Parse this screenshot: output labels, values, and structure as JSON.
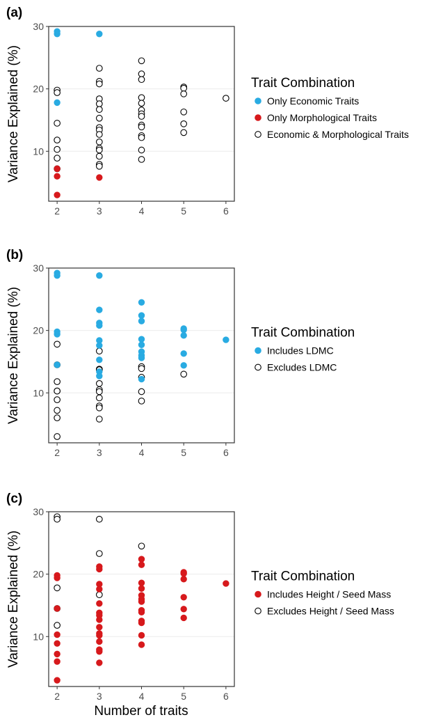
{
  "figure": {
    "xlabel": "Number of traits",
    "ylabel": "Variance Explained (%)"
  },
  "colors": {
    "economic_blue": "#29abe2",
    "morphological_red": "#d7191c",
    "open_marker_stroke": "#000000",
    "gridline": "#ebebeb",
    "axis": "#333333"
  },
  "chart_data": [
    {
      "type": "scatter",
      "panel_label": "(a)",
      "xlabel": "",
      "ylabel": "Variance Explained (%)",
      "xlim": [
        1.8,
        6.2
      ],
      "ylim": [
        2,
        30
      ],
      "x_ticks": [
        2,
        3,
        4,
        5,
        6
      ],
      "y_ticks": [
        10,
        20,
        30
      ],
      "grid": true,
      "legend_position": "right",
      "legend_title": "Trait Combination",
      "series": [
        {
          "name": "Only Economic Traits",
          "marker": "filled",
          "color": "#29abe2",
          "points": [
            [
              2,
              29.2
            ],
            [
              2,
              28.8
            ],
            [
              2,
              17.8
            ],
            [
              3,
              28.8
            ]
          ]
        },
        {
          "name": "Only Morphological Traits",
          "marker": "filled",
          "color": "#d7191c",
          "points": [
            [
              2,
              7.2
            ],
            [
              2,
              6.0
            ],
            [
              2,
              3.0
            ],
            [
              3,
              5.8
            ]
          ]
        },
        {
          "name": "Economic & Morphological Traits",
          "marker": "open",
          "color": "#000000",
          "points": [
            [
              2,
              19.8
            ],
            [
              2,
              19.4
            ],
            [
              2,
              14.5
            ],
            [
              2,
              11.8
            ],
            [
              2,
              10.3
            ],
            [
              2,
              8.9
            ],
            [
              2,
              7.2
            ],
            [
              3,
              23.3
            ],
            [
              3,
              21.2
            ],
            [
              3,
              20.8
            ],
            [
              3,
              18.4
            ],
            [
              3,
              17.6
            ],
            [
              3,
              16.7
            ],
            [
              3,
              15.3
            ],
            [
              3,
              13.8
            ],
            [
              3,
              13.4
            ],
            [
              3,
              12.7
            ],
            [
              3,
              11.5
            ],
            [
              3,
              10.5
            ],
            [
              3,
              10.2
            ],
            [
              3,
              9.2
            ],
            [
              3,
              7.9
            ],
            [
              3,
              7.6
            ],
            [
              4,
              24.5
            ],
            [
              4,
              22.4
            ],
            [
              4,
              21.5
            ],
            [
              4,
              18.6
            ],
            [
              4,
              17.7
            ],
            [
              4,
              16.6
            ],
            [
              4,
              16.0
            ],
            [
              4,
              15.6
            ],
            [
              4,
              14.2
            ],
            [
              4,
              13.9
            ],
            [
              4,
              12.5
            ],
            [
              4,
              12.2
            ],
            [
              4,
              10.2
            ],
            [
              4,
              8.7
            ],
            [
              5,
              20.3
            ],
            [
              5,
              20.1
            ],
            [
              5,
              19.2
            ],
            [
              5,
              16.3
            ],
            [
              5,
              14.4
            ],
            [
              5,
              13.0
            ],
            [
              6,
              18.5
            ]
          ]
        }
      ]
    },
    {
      "type": "scatter",
      "panel_label": "(b)",
      "xlabel": "",
      "ylabel": "Variance Explained (%)",
      "xlim": [
        1.8,
        6.2
      ],
      "ylim": [
        2,
        30
      ],
      "x_ticks": [
        2,
        3,
        4,
        5,
        6
      ],
      "y_ticks": [
        10,
        20,
        30
      ],
      "grid": true,
      "legend_position": "right",
      "legend_title": "Trait Combination",
      "series": [
        {
          "name": "Includes LDMC",
          "marker": "filled",
          "color": "#29abe2",
          "points": [
            [
              2,
              29.2
            ],
            [
              2,
              28.8
            ],
            [
              2,
              19.8
            ],
            [
              2,
              19.4
            ],
            [
              2,
              14.5
            ],
            [
              3,
              28.8
            ],
            [
              3,
              23.3
            ],
            [
              3,
              21.2
            ],
            [
              3,
              20.8
            ],
            [
              3,
              18.4
            ],
            [
              3,
              17.6
            ],
            [
              3,
              15.3
            ],
            [
              3,
              13.4
            ],
            [
              3,
              12.7
            ],
            [
              4,
              24.5
            ],
            [
              4,
              22.4
            ],
            [
              4,
              21.5
            ],
            [
              4,
              18.6
            ],
            [
              4,
              17.7
            ],
            [
              4,
              16.6
            ],
            [
              4,
              16.0
            ],
            [
              4,
              15.6
            ],
            [
              4,
              12.2
            ],
            [
              5,
              20.3
            ],
            [
              5,
              20.1
            ],
            [
              5,
              19.2
            ],
            [
              5,
              16.3
            ],
            [
              5,
              14.4
            ],
            [
              6,
              18.5
            ]
          ]
        },
        {
          "name": "Excludes LDMC",
          "marker": "open",
          "color": "#000000",
          "points": [
            [
              2,
              17.8
            ],
            [
              2,
              14.5
            ],
            [
              2,
              11.8
            ],
            [
              2,
              10.3
            ],
            [
              2,
              10.3
            ],
            [
              2,
              8.9
            ],
            [
              2,
              7.2
            ],
            [
              2,
              6.0
            ],
            [
              2,
              3.0
            ],
            [
              3,
              16.7
            ],
            [
              3,
              13.8
            ],
            [
              3,
              13.7
            ],
            [
              3,
              11.5
            ],
            [
              3,
              10.5
            ],
            [
              3,
              10.2
            ],
            [
              3,
              9.2
            ],
            [
              3,
              7.9
            ],
            [
              3,
              7.6
            ],
            [
              3,
              5.8
            ],
            [
              4,
              14.2
            ],
            [
              4,
              13.9
            ],
            [
              4,
              12.5
            ],
            [
              4,
              10.2
            ],
            [
              4,
              8.7
            ],
            [
              5,
              13.0
            ]
          ]
        }
      ]
    },
    {
      "type": "scatter",
      "panel_label": "(c)",
      "xlabel": "Number of traits",
      "ylabel": "Variance Explained (%)",
      "xlim": [
        1.8,
        6.2
      ],
      "ylim": [
        2,
        30
      ],
      "x_ticks": [
        2,
        3,
        4,
        5,
        6
      ],
      "y_ticks": [
        10,
        20,
        30
      ],
      "grid": true,
      "legend_position": "right",
      "legend_title": "Trait Combination",
      "series": [
        {
          "name": "Includes Height / Seed Mass",
          "marker": "filled",
          "color": "#d7191c",
          "points": [
            [
              2,
              19.8
            ],
            [
              2,
              19.4
            ],
            [
              2,
              14.5
            ],
            [
              2,
              10.3
            ],
            [
              2,
              8.9
            ],
            [
              2,
              7.2
            ],
            [
              2,
              6.0
            ],
            [
              2,
              3.0
            ],
            [
              3,
              21.2
            ],
            [
              3,
              20.8
            ],
            [
              3,
              18.4
            ],
            [
              3,
              17.6
            ],
            [
              3,
              15.3
            ],
            [
              3,
              13.8
            ],
            [
              3,
              13.4
            ],
            [
              3,
              12.7
            ],
            [
              3,
              11.5
            ],
            [
              3,
              10.5
            ],
            [
              3,
              10.2
            ],
            [
              3,
              9.2
            ],
            [
              3,
              7.9
            ],
            [
              3,
              7.6
            ],
            [
              3,
              5.8
            ],
            [
              4,
              22.4
            ],
            [
              4,
              21.5
            ],
            [
              4,
              18.6
            ],
            [
              4,
              17.7
            ],
            [
              4,
              16.6
            ],
            [
              4,
              16.0
            ],
            [
              4,
              15.6
            ],
            [
              4,
              14.2
            ],
            [
              4,
              13.9
            ],
            [
              4,
              12.5
            ],
            [
              4,
              12.2
            ],
            [
              4,
              10.2
            ],
            [
              4,
              8.7
            ],
            [
              5,
              20.3
            ],
            [
              5,
              20.1
            ],
            [
              5,
              19.2
            ],
            [
              5,
              16.3
            ],
            [
              5,
              14.4
            ],
            [
              5,
              13.0
            ],
            [
              6,
              18.5
            ]
          ]
        },
        {
          "name": "Excludes Height / Seed Mass",
          "marker": "open",
          "color": "#000000",
          "points": [
            [
              2,
              29.2
            ],
            [
              2,
              28.8
            ],
            [
              2,
              17.8
            ],
            [
              2,
              14.5
            ],
            [
              2,
              11.8
            ],
            [
              3,
              28.8
            ],
            [
              3,
              23.3
            ],
            [
              3,
              16.7
            ],
            [
              4,
              24.5
            ]
          ]
        }
      ]
    }
  ]
}
